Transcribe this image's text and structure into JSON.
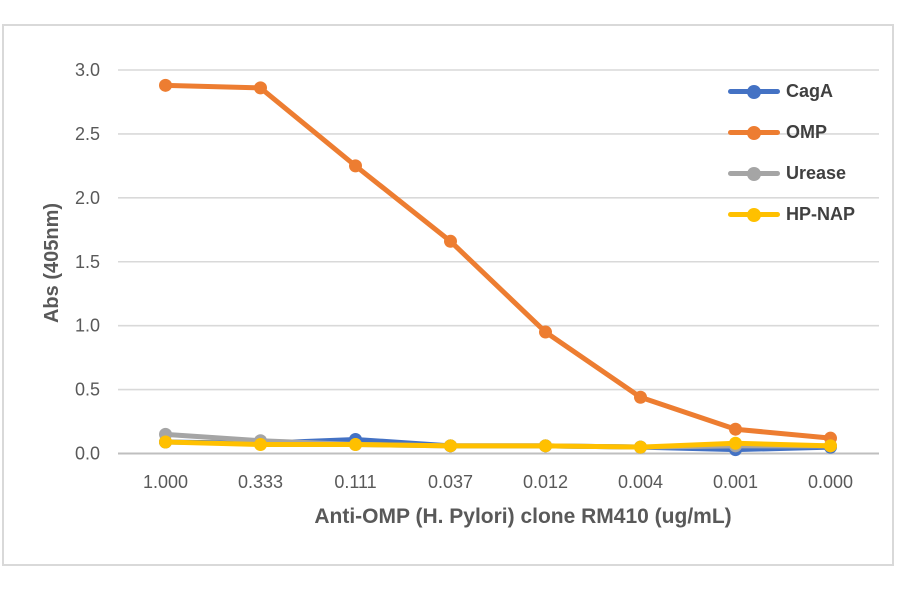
{
  "chart_data": {
    "type": "line",
    "title": "",
    "xlabel": "Anti-OMP (H. Pylori) clone RM410 (ug/mL)",
    "ylabel": "Abs (405nm)",
    "categories": [
      "1.000",
      "0.333",
      "0.111",
      "0.037",
      "0.012",
      "0.004",
      "0.001",
      "0.000"
    ],
    "yticks": [
      "3.0",
      "2.5",
      "2.0",
      "1.5",
      "1.0",
      "0.5",
      "0.0"
    ],
    "ylim": [
      0.0,
      3.0
    ],
    "grid": true,
    "legend_position": "top-right-inside",
    "series": [
      {
        "name": "CagA",
        "color": "#4472C4",
        "values": [
          0.09,
          0.08,
          0.11,
          0.06,
          0.06,
          0.05,
          0.03,
          0.05
        ]
      },
      {
        "name": "OMP",
        "color": "#ED7D31",
        "values": [
          2.88,
          2.86,
          2.25,
          1.66,
          0.95,
          0.44,
          0.19,
          0.12
        ]
      },
      {
        "name": "Urease",
        "color": "#A5A5A5",
        "values": [
          0.15,
          0.1,
          0.07,
          0.06,
          0.06,
          0.05,
          0.06,
          0.06
        ]
      },
      {
        "name": "HP-NAP",
        "color": "#FFC000",
        "values": [
          0.09,
          0.07,
          0.07,
          0.06,
          0.06,
          0.05,
          0.08,
          0.06
        ]
      }
    ],
    "style_colors": {
      "gridline": "#D9D9D9",
      "axis_line": "#BFBFBF",
      "tick_text": "#595959",
      "title_text": "#595959",
      "legend_text": "#404040",
      "frame_border": "#D9D9D9",
      "background": "#FFFFFF"
    }
  }
}
